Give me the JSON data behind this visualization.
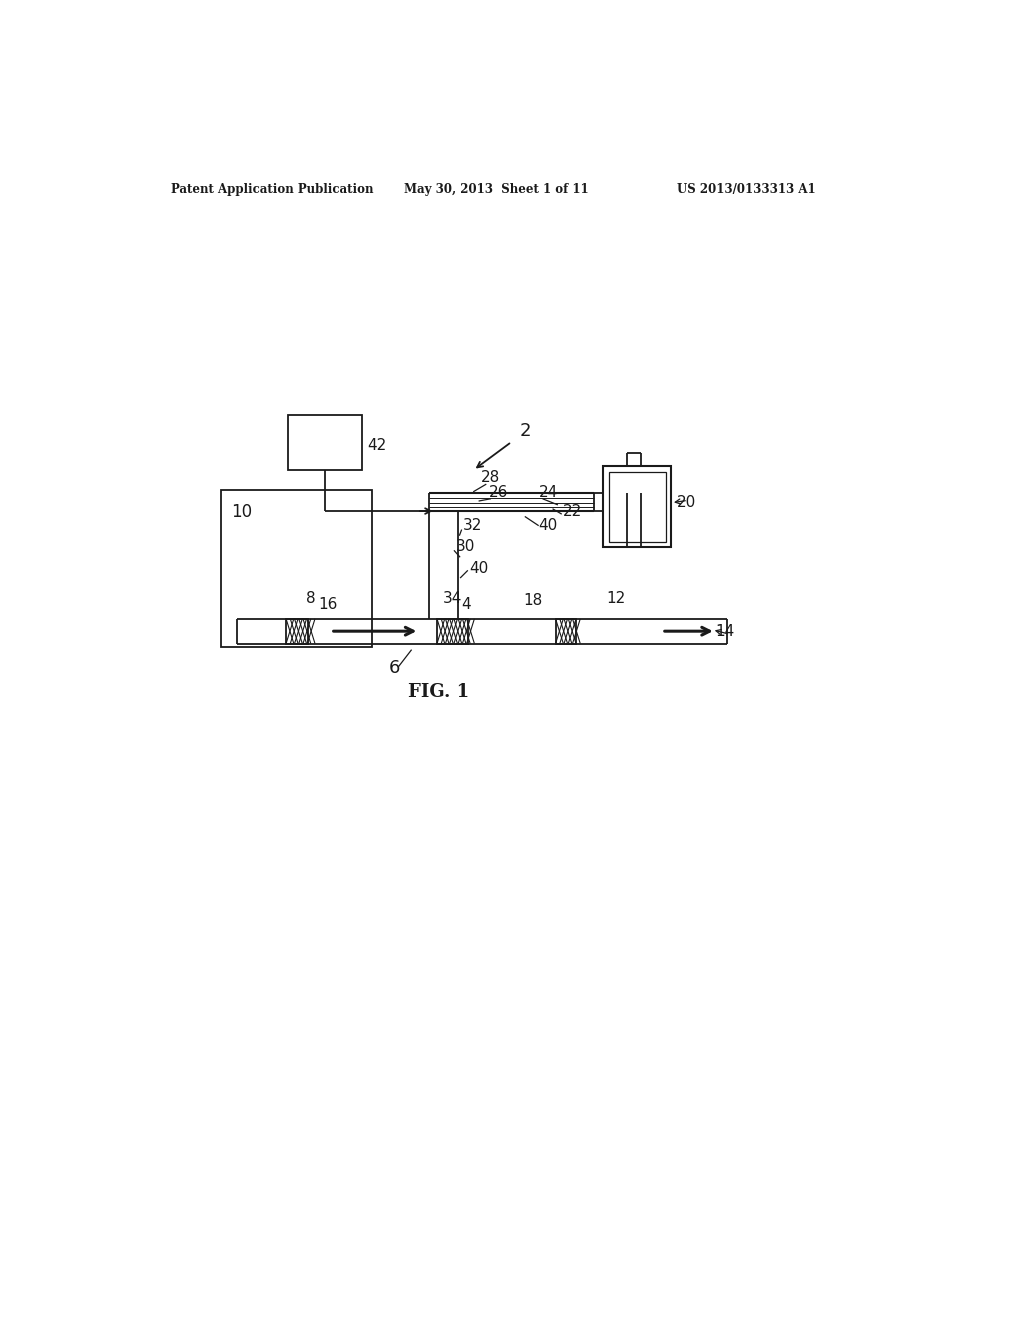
{
  "bg_color": "#ffffff",
  "line_color": "#1a1a1a",
  "header_left": "Patent Application Publication",
  "header_mid": "May 30, 2013  Sheet 1 of 11",
  "header_right": "US 2013/0133313 A1",
  "fig_label": "FIG. 1",
  "label_2": "2",
  "label_42": "42",
  "label_20": "20",
  "label_10": "10",
  "label_28": "28",
  "label_26": "26",
  "label_24": "24",
  "label_22": "22",
  "label_40a": "40",
  "label_40b": "40",
  "label_32": "32",
  "label_30": "30",
  "label_8": "8",
  "label_16": "16",
  "label_34": "34",
  "label_4": "4",
  "label_18": "18",
  "label_12": "12",
  "label_14": "14",
  "label_6": "6"
}
